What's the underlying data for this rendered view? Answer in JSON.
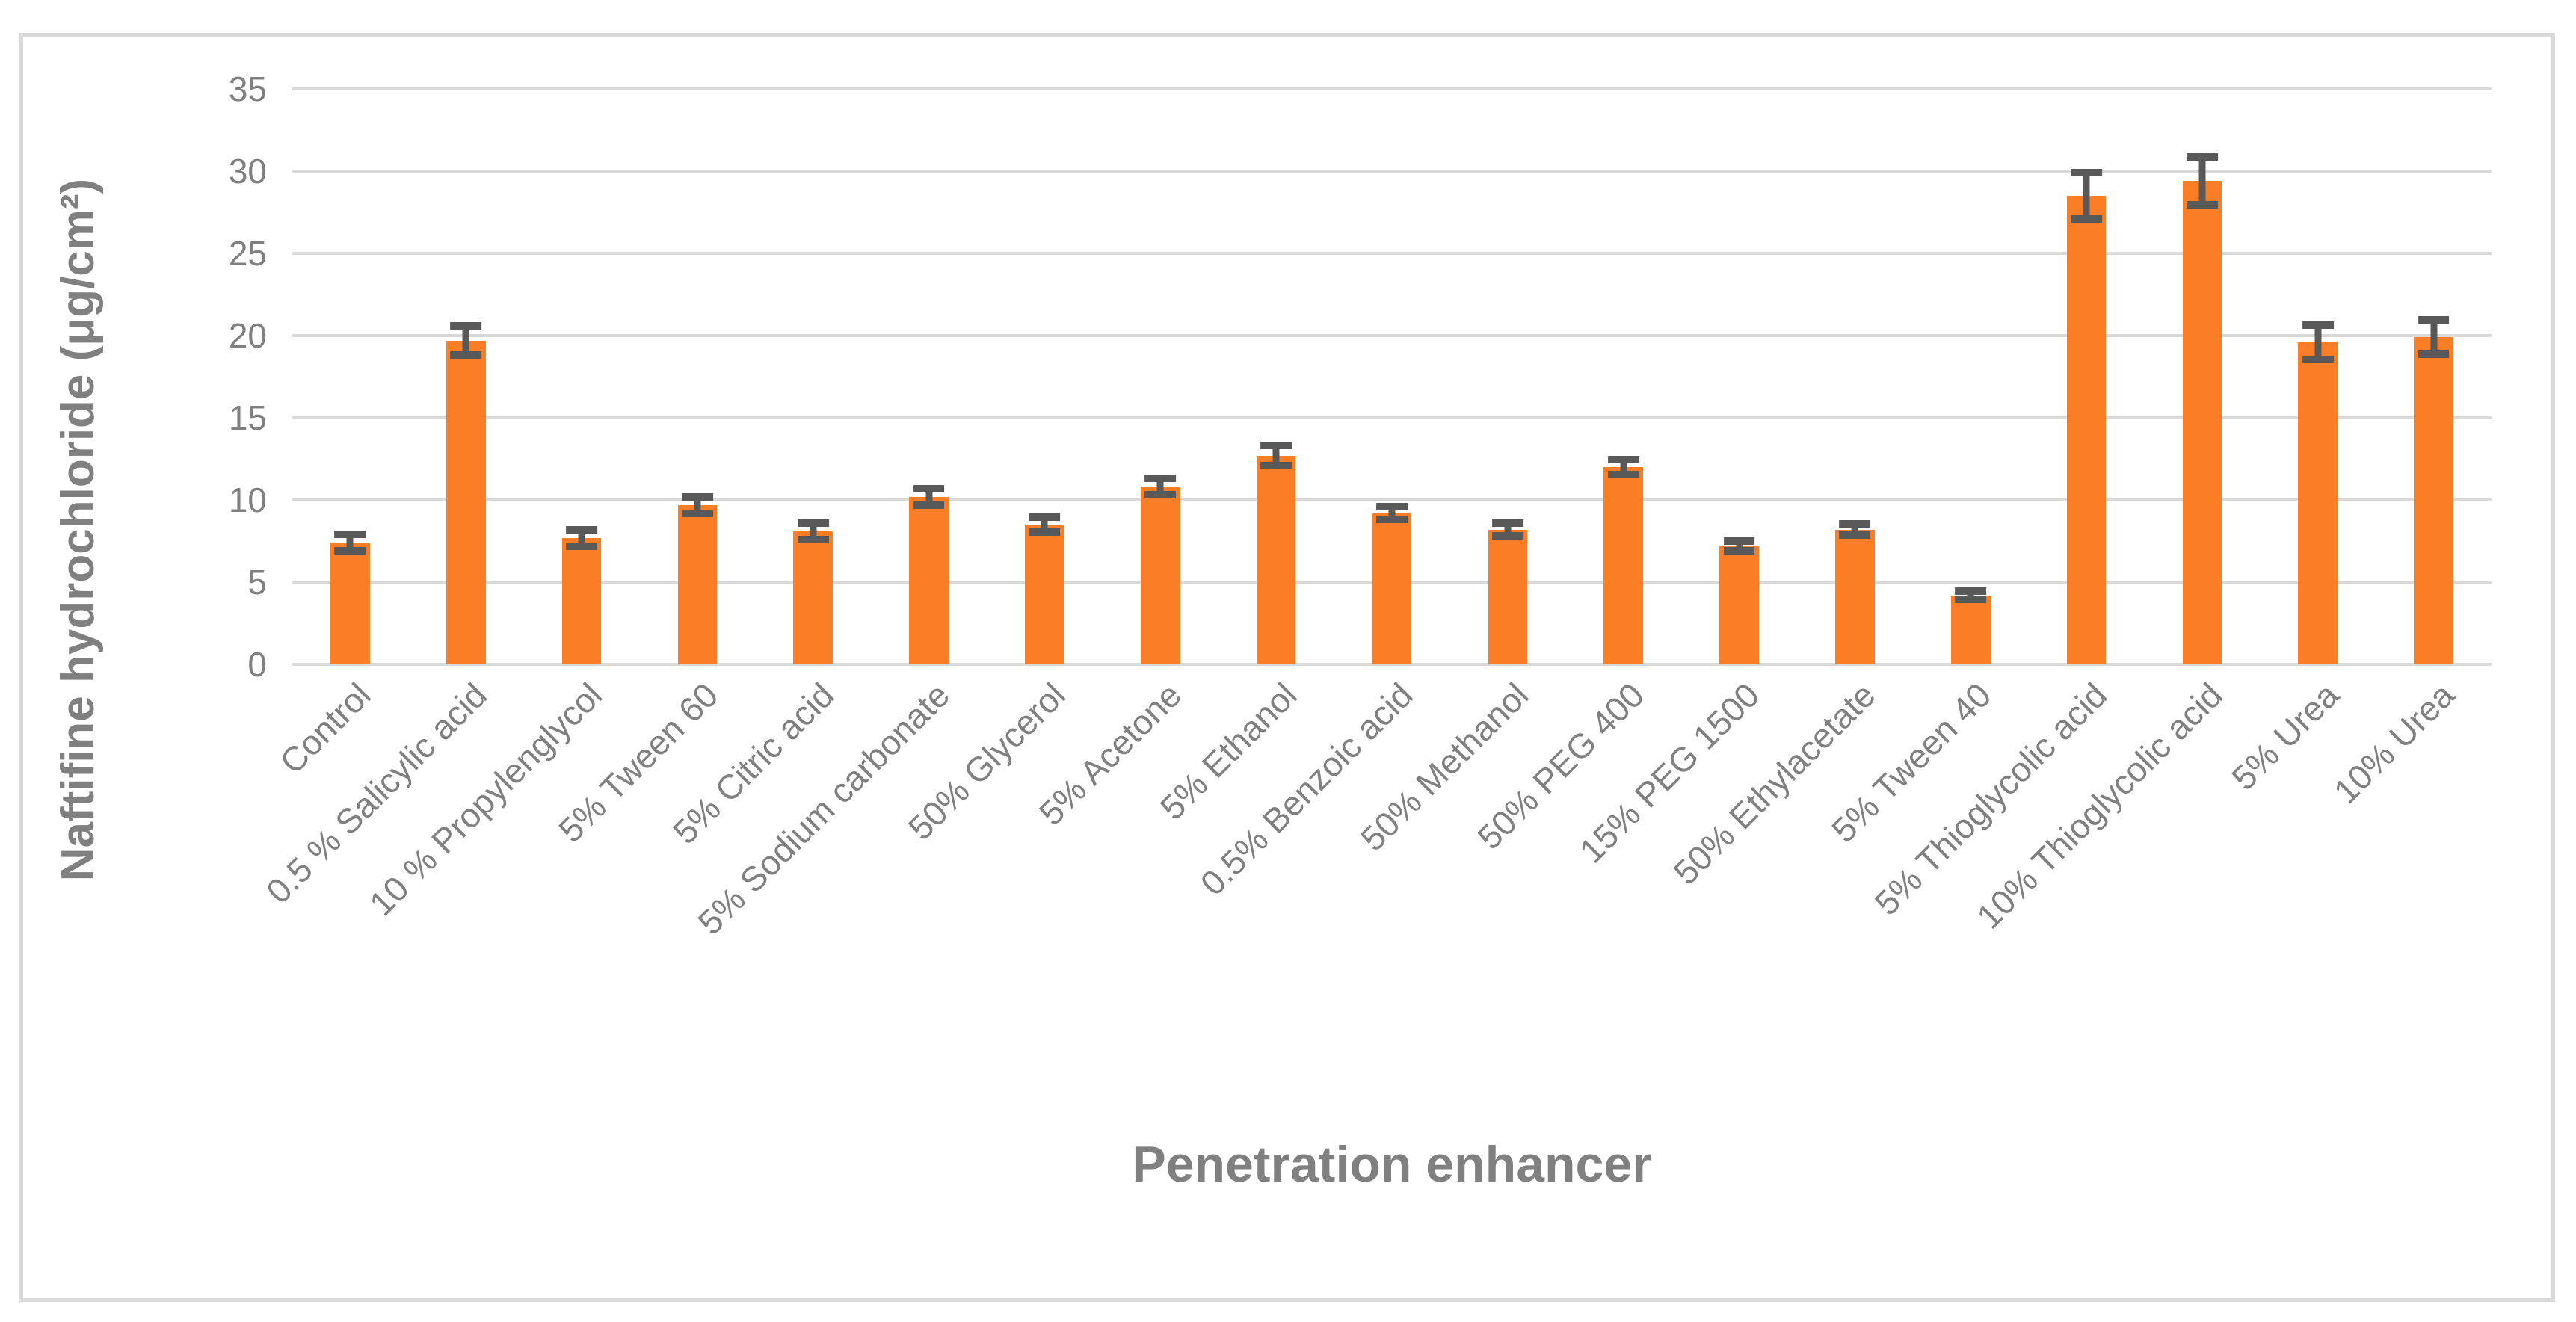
{
  "chart_data": {
    "type": "bar",
    "title": "",
    "xlabel": "Penetration enhancer",
    "ylabel": "Naftifine hydrochloride (μg/cm²)",
    "ylim": [
      0,
      35
    ],
    "yticks": [
      0,
      5,
      10,
      15,
      20,
      25,
      30,
      35
    ],
    "grid": true,
    "legend": "none",
    "bar_color": "#FB7D25",
    "error_bar_color": "#595959",
    "gridline_color": "#D9D9D9",
    "text_color": "#808080",
    "categories": [
      "Control",
      "0.5 % Salicylic acid",
      "10 % Propylenglycol",
      "5% Tween 60",
      "5% Citric acid",
      "5% Sodium carbonate",
      "50% Glycerol",
      "5% Acetone",
      "5% Ethanol",
      "0.5% Benzoic acid",
      "50% Methanol",
      "50% PEG 400",
      "15% PEG 1500",
      "50% Ethylacetate",
      "5% Tween 40",
      "5% Thioglycolic acid",
      "10% Thioglycolic acid",
      "5% Urea",
      "10% Urea"
    ],
    "values": [
      7.4,
      19.7,
      7.7,
      9.7,
      8.1,
      10.2,
      8.5,
      10.8,
      12.7,
      9.2,
      8.2,
      12.0,
      7.2,
      8.2,
      4.2,
      28.5,
      29.4,
      19.6,
      19.9
    ],
    "errors": [
      0.5,
      0.9,
      0.5,
      0.5,
      0.5,
      0.5,
      0.45,
      0.5,
      0.6,
      0.4,
      0.4,
      0.45,
      0.3,
      0.35,
      0.25,
      1.4,
      1.45,
      1.05,
      1.05
    ]
  }
}
